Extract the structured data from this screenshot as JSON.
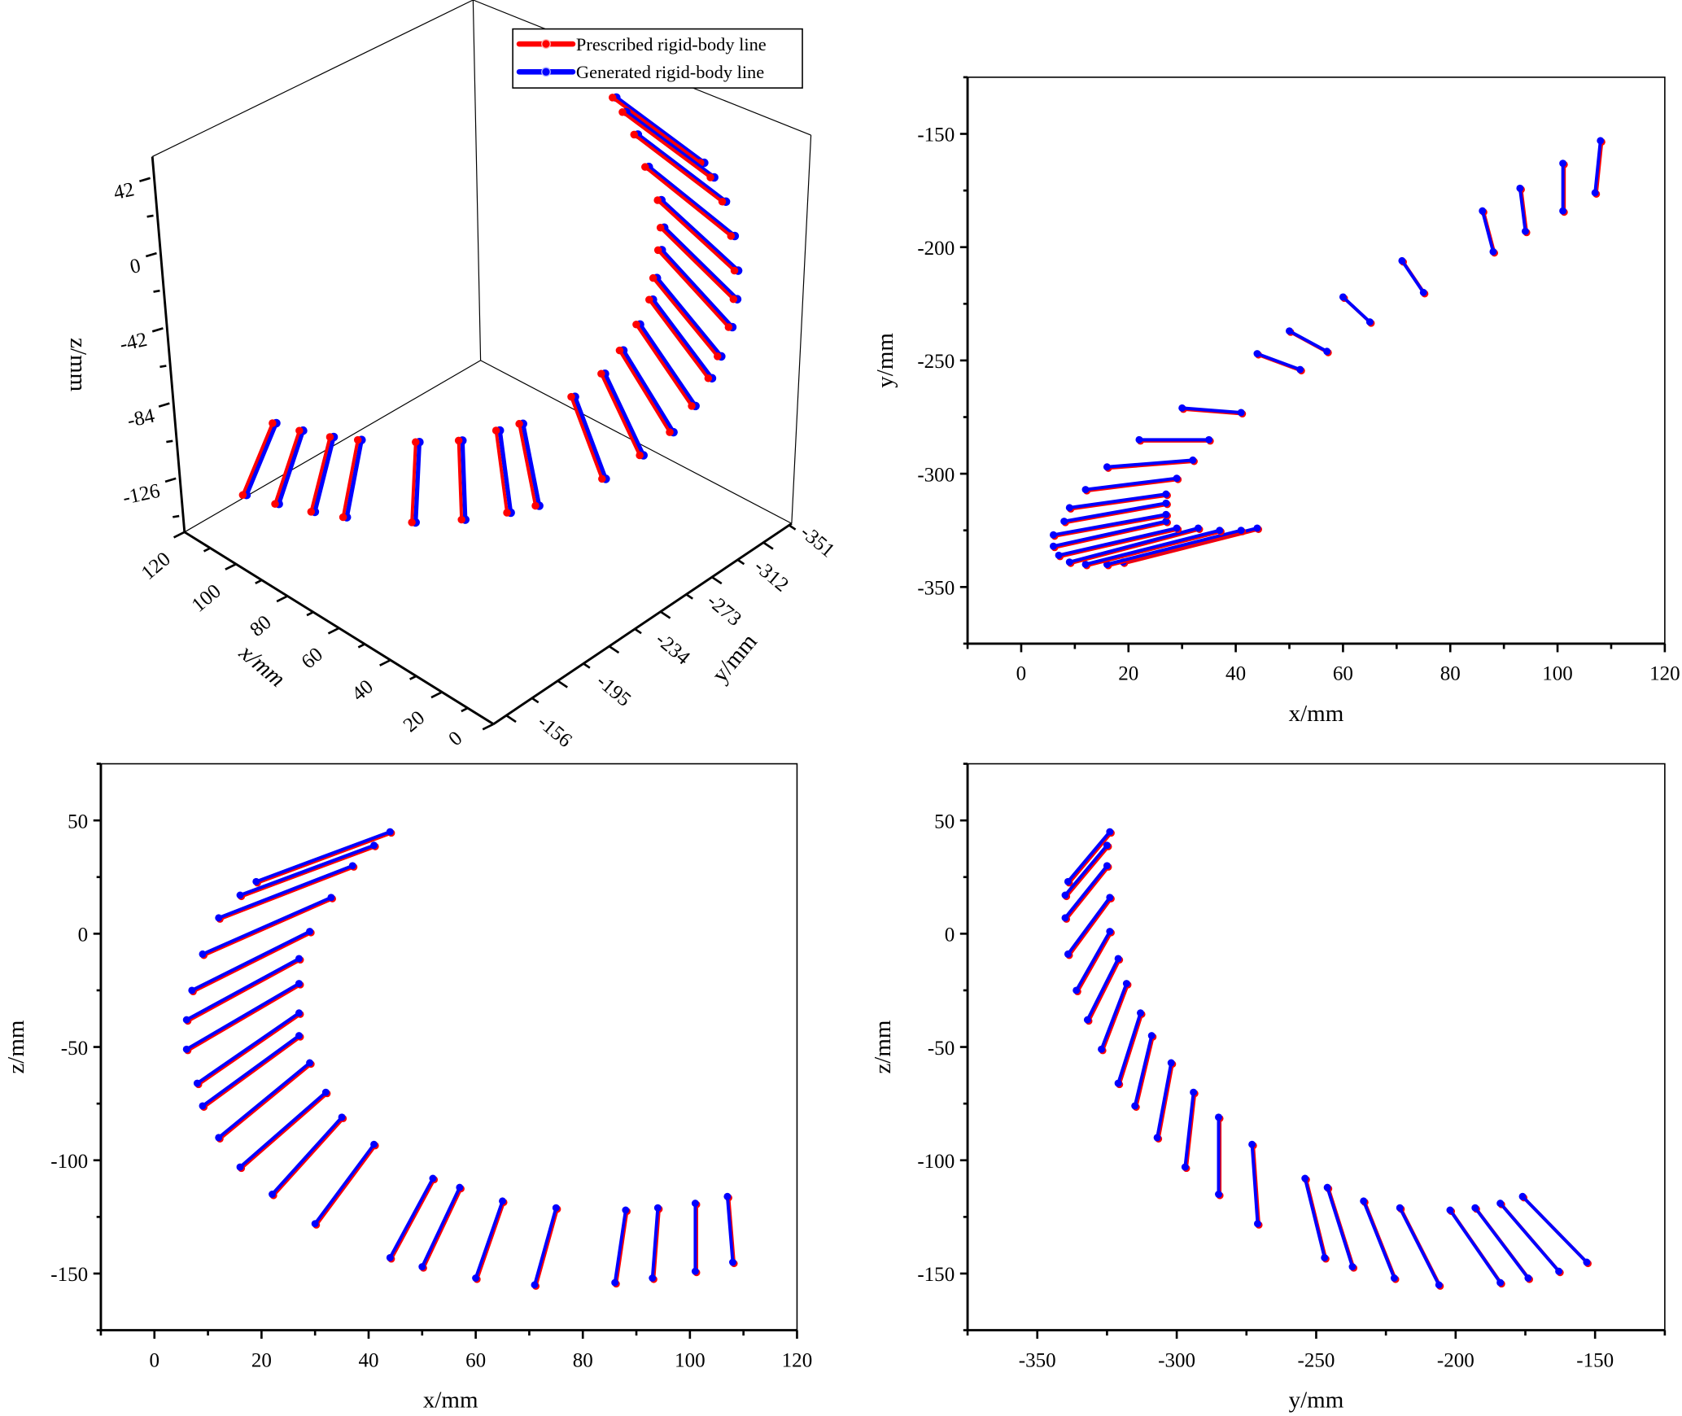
{
  "chart_data": [
    {
      "type": "line",
      "view": "3d",
      "title": "",
      "xlabel": "x/mm",
      "ylabel": "y/mm",
      "zlabel": "z/mm",
      "x_ticks": [
        "120",
        "100",
        "80",
        "60",
        "40",
        "20",
        "0"
      ],
      "y_ticks": [
        "-156",
        "-195",
        "-234",
        "-273",
        "-312",
        "-351"
      ],
      "z_ticks": [
        "42",
        "0",
        "-42",
        "-84",
        "-126"
      ],
      "legend": {
        "placement": "top-right",
        "entries": [
          "Prescribed rigid-body line",
          "Generated rigid-body line"
        ]
      }
    },
    {
      "type": "line",
      "view": "xy",
      "xlabel": "x/mm",
      "ylabel": "y/mm",
      "xlim": [
        -10,
        120
      ],
      "ylim": [
        -375,
        -125
      ],
      "x_ticks": [
        "0",
        "20",
        "40",
        "60",
        "80",
        "100",
        "120"
      ],
      "y_ticks": [
        "-150",
        "-200",
        "-250",
        "-300",
        "-350"
      ]
    },
    {
      "type": "line",
      "view": "xz",
      "xlabel": "x/mm",
      "ylabel": "z/mm",
      "xlim": [
        -10,
        120
      ],
      "ylim": [
        -175,
        75
      ],
      "x_ticks": [
        "0",
        "20",
        "40",
        "60",
        "80",
        "100",
        "120"
      ],
      "y_ticks": [
        "50",
        "0",
        "-50",
        "-100",
        "-150"
      ]
    },
    {
      "type": "line",
      "view": "yz",
      "xlabel": "y/mm",
      "ylabel": "z/mm",
      "xlim": [
        -375,
        -125
      ],
      "ylim": [
        -175,
        75
      ],
      "x_ticks": [
        "-350",
        "-300",
        "-250",
        "-200",
        "-150"
      ],
      "y_ticks": [
        "50",
        "0",
        "-50",
        "-100",
        "-150"
      ]
    }
  ],
  "series": [
    {
      "name": "Prescribed rigid-body line",
      "color": "#ff0000"
    },
    {
      "name": "Generated rigid-body line",
      "color": "#0000ff"
    }
  ],
  "segments": [
    {
      "p1": [
        19,
        -339,
        23
      ],
      "p2": [
        44,
        -324,
        45
      ]
    },
    {
      "p1": [
        16,
        -340,
        17
      ],
      "p2": [
        41,
        -325,
        39
      ]
    },
    {
      "p1": [
        12,
        -340,
        7
      ],
      "p2": [
        37,
        -325,
        30
      ]
    },
    {
      "p1": [
        9,
        -339,
        -9
      ],
      "p2": [
        33,
        -324,
        16
      ]
    },
    {
      "p1": [
        7,
        -336,
        -25
      ],
      "p2": [
        29,
        -324,
        1
      ]
    },
    {
      "p1": [
        6,
        -332,
        -38
      ],
      "p2": [
        27,
        -321,
        -11
      ]
    },
    {
      "p1": [
        6,
        -327,
        -51
      ],
      "p2": [
        27,
        -318,
        -22
      ]
    },
    {
      "p1": [
        8,
        -321,
        -66
      ],
      "p2": [
        27,
        -313,
        -35
      ]
    },
    {
      "p1": [
        9,
        -315,
        -76
      ],
      "p2": [
        27,
        -309,
        -45
      ]
    },
    {
      "p1": [
        12,
        -307,
        -90
      ],
      "p2": [
        29,
        -302,
        -57
      ]
    },
    {
      "p1": [
        16,
        -297,
        -103
      ],
      "p2": [
        32,
        -294,
        -70
      ]
    },
    {
      "p1": [
        22,
        -285,
        -115
      ],
      "p2": [
        35,
        -285,
        -81
      ]
    },
    {
      "p1": [
        30,
        -271,
        -128
      ],
      "p2": [
        41,
        -273,
        -93
      ]
    },
    {
      "p1": [
        44,
        -247,
        -143
      ],
      "p2": [
        52,
        -254,
        -108
      ]
    },
    {
      "p1": [
        50,
        -237,
        -147
      ],
      "p2": [
        57,
        -246,
        -112
      ]
    },
    {
      "p1": [
        60,
        -222,
        -152
      ],
      "p2": [
        65,
        -233,
        -118
      ]
    },
    {
      "p1": [
        71,
        -206,
        -155
      ],
      "p2": [
        75,
        -220,
        -121
      ]
    },
    {
      "p1": [
        86,
        -184,
        -154
      ],
      "p2": [
        88,
        -202,
        -122
      ]
    },
    {
      "p1": [
        93,
        -174,
        -152
      ],
      "p2": [
        94,
        -193,
        -121
      ]
    },
    {
      "p1": [
        101,
        -163,
        -149
      ],
      "p2": [
        101,
        -184,
        -119
      ]
    },
    {
      "p1": [
        108,
        -153,
        -145
      ],
      "p2": [
        107,
        -176,
        -116
      ]
    }
  ]
}
